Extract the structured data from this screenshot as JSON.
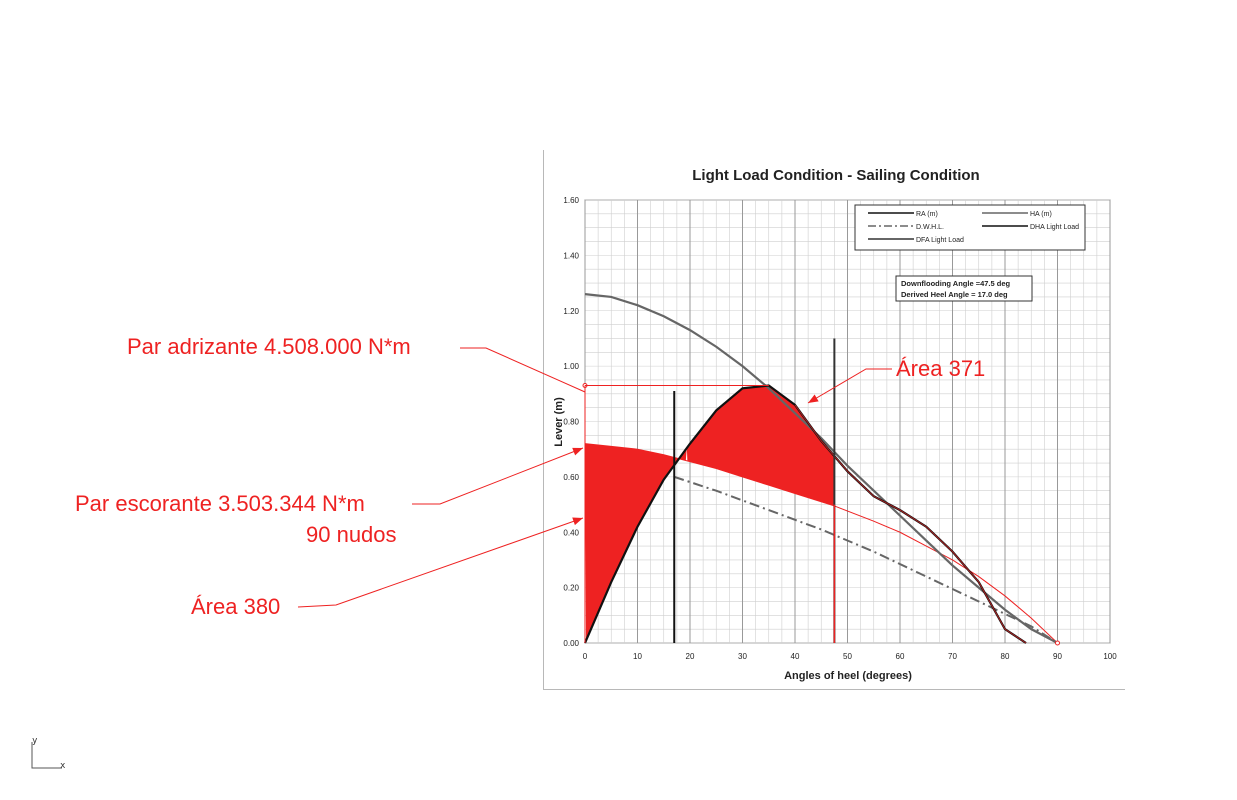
{
  "viewport": {
    "axis_indicator": {
      "y_label": "y",
      "x_label": "x"
    }
  },
  "annotations": {
    "par_adrizante": "Par adrizante 4.508.000 N*m",
    "par_escorante": "Par escorante 3.503.344 N*m",
    "nudos": "90 nudos",
    "area_380": "Área 380",
    "area_371": "Área 371",
    "color": "#ee2222"
  },
  "chart_data": {
    "type": "line",
    "title": "Light Load Condition - Sailing Condition",
    "xlabel": "Angles of heel (degrees)",
    "ylabel": "Lever (m)",
    "xlim": [
      0,
      100
    ],
    "ylim": [
      0,
      1.6
    ],
    "xticks": [
      0,
      10,
      20,
      30,
      40,
      50,
      60,
      70,
      80,
      90,
      100
    ],
    "yticks": [
      "0.00",
      "0.20",
      "0.40",
      "0.60",
      "0.80",
      "1.00",
      "1.20",
      "1.40",
      "1.60"
    ],
    "grid": true,
    "legend_position": "top-right",
    "legend": [
      "RA (m)",
      "HA (m)",
      "D.W.H.L.",
      "DHA Light Load",
      "DFA Light Load"
    ],
    "info_box": [
      "Downflooding Angle =47.5 deg",
      "Derived Heel Angle = 17.0 deg"
    ],
    "series": [
      {
        "name": "RA (m)",
        "color": "#111111",
        "x": [
          0,
          5,
          10,
          15,
          20,
          25,
          30,
          35,
          40,
          45,
          50,
          55,
          60,
          65,
          70,
          75,
          80,
          84
        ],
        "y": [
          0.0,
          0.22,
          0.42,
          0.59,
          0.72,
          0.84,
          0.92,
          0.93,
          0.86,
          0.73,
          0.62,
          0.53,
          0.48,
          0.42,
          0.33,
          0.22,
          0.05,
          0.0
        ]
      },
      {
        "name": "HA (m)",
        "color": "#666666",
        "x": [
          0,
          5,
          10,
          15,
          20,
          25,
          30,
          35,
          40,
          45,
          50,
          55,
          60,
          65,
          70,
          75,
          80,
          85,
          90
        ],
        "y": [
          1.26,
          1.25,
          1.22,
          1.18,
          1.13,
          1.07,
          1.0,
          0.92,
          0.83,
          0.74,
          0.64,
          0.55,
          0.46,
          0.37,
          0.28,
          0.2,
          0.12,
          0.05,
          0.0
        ]
      },
      {
        "name": "D.W.H.L.",
        "color": "#666666",
        "x": [
          17,
          25,
          35,
          45,
          55,
          65,
          75,
          85,
          90
        ],
        "y": [
          0.6,
          0.55,
          0.48,
          0.41,
          0.33,
          0.24,
          0.15,
          0.06,
          0.0
        ]
      },
      {
        "name": "DHA Light Load",
        "color": "#111111",
        "x": [
          17,
          17
        ],
        "y": [
          0.0,
          0.91
        ]
      },
      {
        "name": "DFA Light Load",
        "color": "#333333",
        "x": [
          47.5,
          47.5
        ],
        "y": [
          0.0,
          1.1
        ]
      }
    ],
    "overlays": {
      "heeling_lever_curve": {
        "x": [
          0,
          5,
          10,
          15,
          20,
          25,
          30,
          35,
          40,
          45,
          47.5,
          55,
          60,
          65,
          70,
          75,
          80,
          85,
          90
        ],
        "y": [
          0.72,
          0.71,
          0.7,
          0.68,
          0.655,
          0.63,
          0.6,
          0.57,
          0.54,
          0.51,
          0.495,
          0.44,
          0.4,
          0.35,
          0.3,
          0.24,
          0.17,
          0.09,
          0.0
        ]
      },
      "righting_arm_max": 0.93
    }
  }
}
